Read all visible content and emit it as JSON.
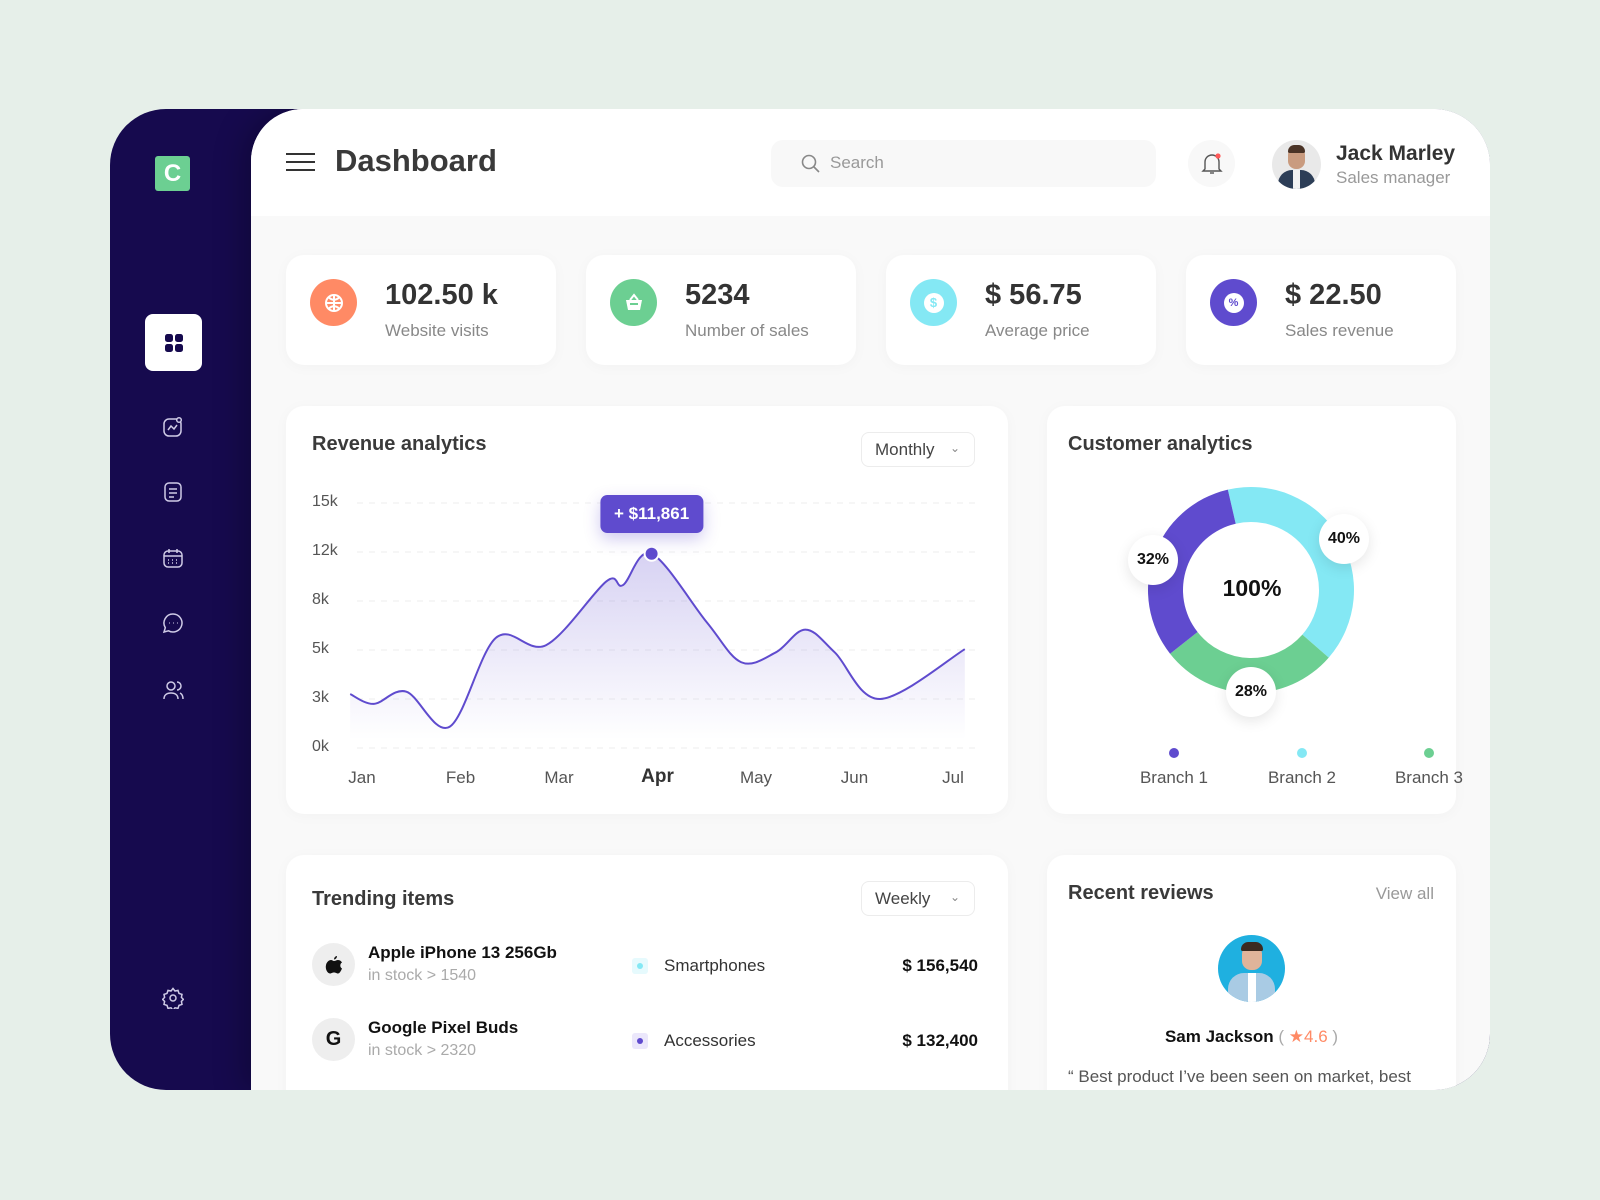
{
  "colors": {
    "sidebar": "#160a4e",
    "accent": "#5f4bce",
    "logo": "#6ccf92",
    "orange": "#ff8a65",
    "green": "#6ccf92",
    "cyan": "#84e8f4",
    "purple": "#5f4bce",
    "background": "#e6efe9"
  },
  "sidebar": {
    "logo_letter": "C",
    "items": [
      {
        "icon": "grid-icon",
        "active": true
      },
      {
        "icon": "analytics-icon"
      },
      {
        "icon": "document-icon"
      },
      {
        "icon": "calendar-icon"
      },
      {
        "icon": "chat-icon"
      },
      {
        "icon": "users-icon"
      }
    ],
    "settings_icon": "gear-icon"
  },
  "header": {
    "title": "Dashboard",
    "search_placeholder": "Search",
    "user": {
      "name": "Jack Marley",
      "role": "Sales manager"
    }
  },
  "stats": [
    {
      "value": "102.50 k",
      "label": "Website visits",
      "icon": "globe-icon",
      "color": "#ff8a65"
    },
    {
      "value": "5234",
      "label": "Number of sales",
      "icon": "basket-icon",
      "color": "#6ccf92"
    },
    {
      "value": "$ 56.75",
      "label": "Average price",
      "icon": "dollar-icon",
      "color": "#84e8f4"
    },
    {
      "value": "$ 22.50",
      "label": "Sales revenue",
      "icon": "percent-icon",
      "color": "#5f4bce"
    }
  ],
  "revenue": {
    "title": "Revenue analytics",
    "period": "Monthly",
    "tooltip": "+ $11,861"
  },
  "chart_data": [
    {
      "type": "area",
      "title": "Revenue analytics",
      "y_ticks": [
        "15k",
        "12k",
        "8k",
        "5k",
        "3k",
        "0k"
      ],
      "y_tick_values": [
        15000,
        12000,
        8000,
        5000,
        3000,
        0
      ],
      "x_ticks": [
        "Jan",
        "Feb",
        "Mar",
        "Apr",
        "May",
        "Jun",
        "Jul"
      ],
      "highlighted_x": "Apr",
      "grid": true,
      "series": [
        {
          "points": [
            [
              0.88,
              3200
            ],
            [
              1.12,
              2700
            ],
            [
              1.45,
              3300
            ],
            [
              1.89,
              1300
            ],
            [
              2.36,
              5750
            ],
            [
              2.87,
              5300
            ],
            [
              3.48,
              9600
            ],
            [
              3.65,
              9300
            ],
            [
              3.94,
              11861
            ],
            [
              4.5,
              6700
            ],
            [
              4.85,
              4500
            ],
            [
              5.2,
              4900
            ],
            [
              5.5,
              6250
            ],
            [
              5.8,
              4900
            ],
            [
              6.26,
              3000
            ],
            [
              7.12,
              5050
            ]
          ]
        }
      ],
      "annotation": {
        "x": 3.94,
        "y": 11861,
        "label": "+ $11,861"
      }
    },
    {
      "type": "pie",
      "title": "Customer analytics",
      "center_label": "100%",
      "slices": [
        {
          "name": "Branch 2",
          "value": 40,
          "label": "40%",
          "color": "#84e8f4"
        },
        {
          "name": "Branch 3",
          "value": 28,
          "label": "28%",
          "color": "#6ccf92"
        },
        {
          "name": "Branch 1",
          "value": 32,
          "label": "32%",
          "color": "#5f4bce"
        }
      ],
      "legend": [
        {
          "name": "Branch 1",
          "color": "#5f4bce"
        },
        {
          "name": "Branch 2",
          "color": "#84e8f4"
        },
        {
          "name": "Branch 3",
          "color": "#6ccf92"
        }
      ],
      "legend_position": "bottom"
    }
  ],
  "customer": {
    "title": "Customer analytics",
    "center": "100%",
    "labels": {
      "b1": "32%",
      "b2": "40%",
      "b3": "28%"
    },
    "legend": [
      "Branch 1",
      "Branch 2",
      "Branch 3"
    ]
  },
  "trending": {
    "title": "Trending items",
    "period": "Weekly",
    "items": [
      {
        "icon": "apple-icon",
        "glyph": "",
        "name": "Apple iPhone 13 256Gb",
        "stock": "in stock > 1540",
        "category": "Smartphones",
        "cat_color": "#84e8f4",
        "price": "$ 156,540"
      },
      {
        "icon": "google-icon",
        "glyph": "G",
        "name": "Google Pixel Buds",
        "stock": "in stock > 2320",
        "category": "Accessories",
        "cat_color": "#5f4bce",
        "price": "$ 132,400"
      }
    ]
  },
  "reviews": {
    "title": "Recent reviews",
    "view_all": "View all",
    "name": "Sam Jackson",
    "open_paren": "(",
    "rating": "4.6",
    "close_paren": ")",
    "text": "“ Best product I’ve been seen on market, best"
  }
}
